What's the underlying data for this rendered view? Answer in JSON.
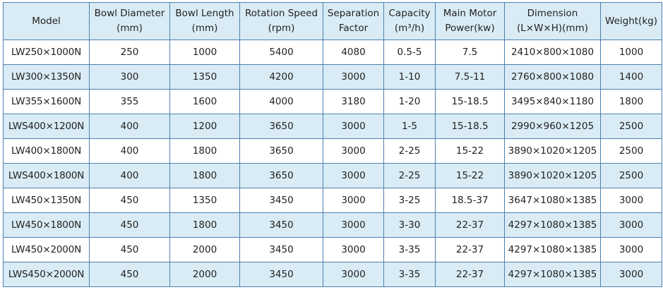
{
  "table": {
    "headers": [
      [
        "Model"
      ],
      [
        "Bowl Diameter",
        "(mm)"
      ],
      [
        "Bowl Length",
        "(mm)"
      ],
      [
        "Rotation Speed",
        "(rpm)"
      ],
      [
        "Separation",
        "Factor"
      ],
      [
        "Capacity",
        "(m³/h)"
      ],
      [
        "Main Motor",
        "Power(kw)"
      ],
      [
        "Dimension",
        "(L×W×H)(mm)"
      ],
      [
        "Weight(kg)"
      ]
    ],
    "rows": [
      [
        "LW250×1000N",
        "250",
        "1000",
        "5400",
        "4080",
        "0.5-5",
        "7.5",
        "2410×800×1080",
        "1000"
      ],
      [
        "LW300×1350N",
        "300",
        "1350",
        "4200",
        "3000",
        "1-10",
        "7.5-11",
        "2760×800×1080",
        "1400"
      ],
      [
        "LW355×1600N",
        "355",
        "1600",
        "4000",
        "3180",
        "1-20",
        "15-18.5",
        "3495×840×1180",
        "1800"
      ],
      [
        "LWS400×1200N",
        "400",
        "1200",
        "3650",
        "3000",
        "1-5",
        "15-18.5",
        "2990×960×1205",
        "2500"
      ],
      [
        "LW400×1800N",
        "400",
        "1800",
        "3650",
        "3000",
        "2-25",
        "15-22",
        "3890×1020×1205",
        "2500"
      ],
      [
        "LWS400×1800N",
        "400",
        "1800",
        "3650",
        "3000",
        "2-25",
        "15-22",
        "3890×1020×1205",
        "2500"
      ],
      [
        "LW450×1350N",
        "450",
        "1350",
        "3450",
        "3000",
        "3-25",
        "18.5-37",
        "3647×1080×1385",
        "3000"
      ],
      [
        "LW450×1800N",
        "450",
        "1800",
        "3450",
        "3000",
        "3-30",
        "22-37",
        "4297×1080×1385",
        "3000"
      ],
      [
        "LW450×2000N",
        "450",
        "2000",
        "3450",
        "3000",
        "3-35",
        "22-37",
        "4297×1080×1385",
        "3000"
      ],
      [
        "LWS450×2000N",
        "450",
        "2000",
        "3450",
        "3000",
        "3-35",
        "22-37",
        "4297×1080×1385",
        "3000"
      ]
    ]
  }
}
